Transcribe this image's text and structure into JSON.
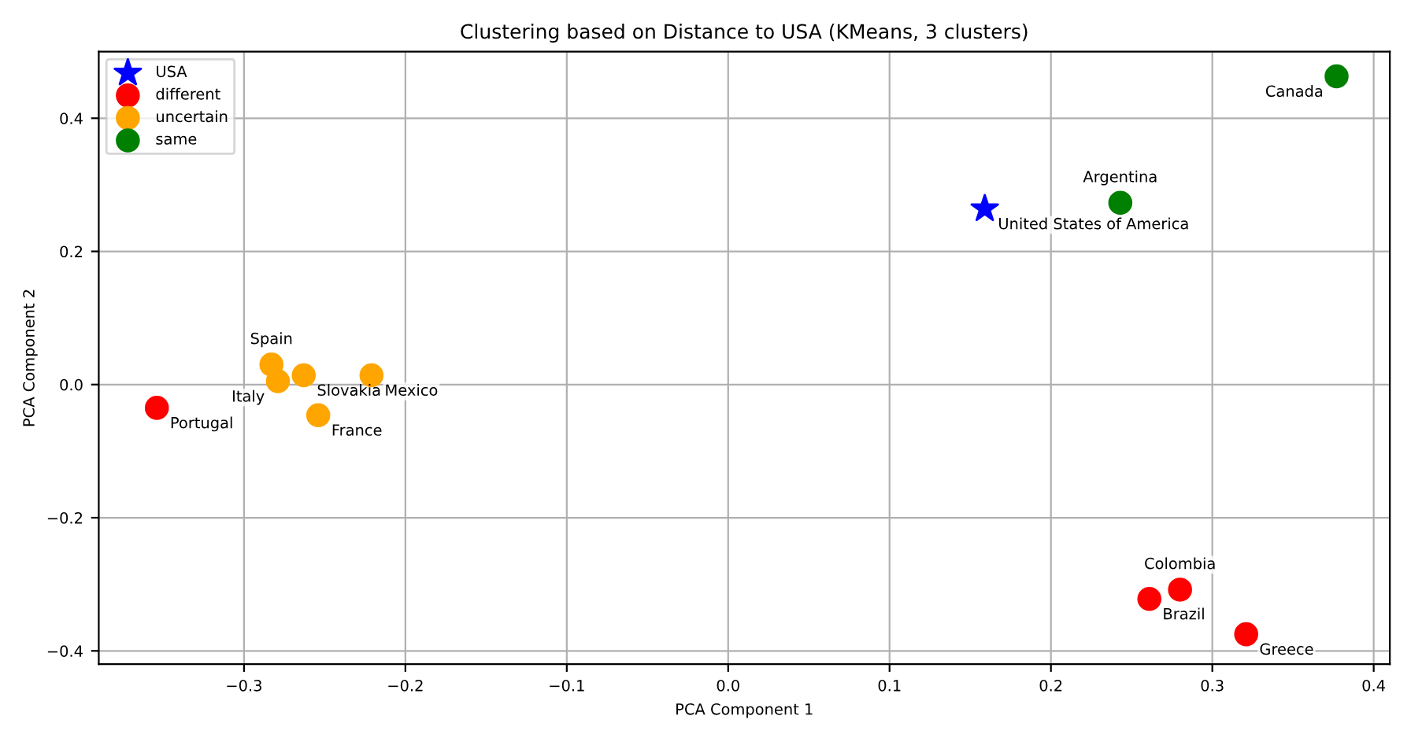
{
  "chart_data": {
    "type": "scatter",
    "title": "Clustering based on Distance to USA (KMeans, 3 clusters)",
    "xlabel": "PCA Component 1",
    "ylabel": "PCA Component 2",
    "xlim": [
      -0.39,
      0.41
    ],
    "ylim": [
      -0.42,
      0.5
    ],
    "xticks": [
      {
        "value": -0.3,
        "label": "−0.3"
      },
      {
        "value": -0.2,
        "label": "−0.2"
      },
      {
        "value": -0.1,
        "label": "−0.1"
      },
      {
        "value": 0.0,
        "label": "0.0"
      },
      0.1,
      0.2,
      0.3,
      0.4
    ],
    "yticks": [
      {
        "value": -0.4,
        "label": "−0.4"
      },
      {
        "value": -0.2,
        "label": "−0.2"
      },
      {
        "value": 0.0,
        "label": "0.0"
      },
      0.2,
      0.4
    ],
    "grid": true,
    "legend": "top left",
    "series": [
      {
        "name": "USA",
        "color": "#0000ff",
        "marker": "star",
        "x": [
          0.159
        ],
        "values": [
          0.264
        ]
      },
      {
        "name": "different",
        "color": "#ff0000",
        "marker": "circle",
        "x": [
          -0.354,
          0.261,
          0.28,
          0.321
        ],
        "values": [
          -0.035,
          -0.322,
          -0.308,
          -0.375
        ]
      },
      {
        "name": "uncertain",
        "color": "#ffa500",
        "marker": "circle",
        "x": [
          -0.283,
          -0.279,
          -0.263,
          -0.221,
          -0.254
        ],
        "values": [
          0.03,
          0.005,
          0.014,
          0.014,
          -0.046
        ]
      },
      {
        "name": "same",
        "color": "#008000",
        "marker": "circle",
        "x": [
          0.243,
          0.377
        ],
        "values": [
          0.273,
          0.463
        ]
      }
    ],
    "annotations": [
      {
        "text": "United States of America",
        "x": 0.159,
        "y": 0.264
      },
      {
        "text": "Portugal",
        "x": -0.354,
        "y": -0.035
      },
      {
        "text": "Brazil",
        "x": 0.261,
        "y": -0.322
      },
      {
        "text": "Colombia",
        "x": 0.28,
        "y": -0.308
      },
      {
        "text": "Greece",
        "x": 0.321,
        "y": -0.375
      },
      {
        "text": "Spain",
        "x": -0.283,
        "y": 0.03
      },
      {
        "text": "Italy",
        "x": -0.279,
        "y": 0.005
      },
      {
        "text": "Slovakia",
        "x": -0.263,
        "y": 0.014
      },
      {
        "text": "Mexico",
        "x": -0.221,
        "y": 0.014
      },
      {
        "text": "France",
        "x": -0.254,
        "y": -0.046
      },
      {
        "text": "Argentina",
        "x": 0.243,
        "y": 0.273
      },
      {
        "text": "Canada",
        "x": 0.377,
        "y": 0.463
      }
    ]
  }
}
